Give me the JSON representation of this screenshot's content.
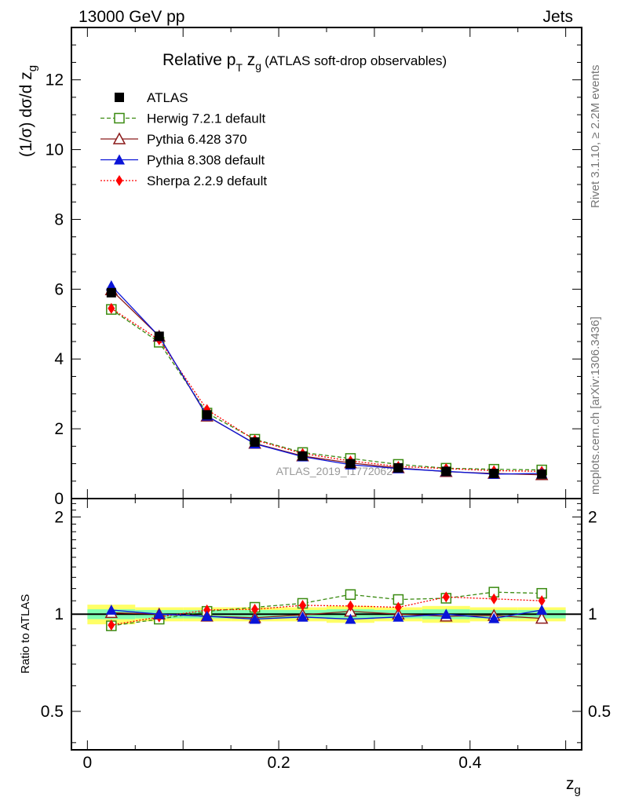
{
  "header": {
    "left": "13000 GeV pp",
    "right": "Jets"
  },
  "title": {
    "main": "Relative p",
    "sub_T": "T",
    "mid": " z",
    "sub_g": "g",
    "paren": "(ATLAS soft-drop observables)"
  },
  "side_text": {
    "rivet": "Rivet 3.1.10, ≥ 2.2M events",
    "mcplots": "mcplots.cern.ch [arXiv:1306.3436]"
  },
  "watermark": "ATLAS_2019_I1772062",
  "axes": {
    "ylabel_main": "(1/σ) dσ/d z",
    "ylabel_main_sub": "g",
    "ylabel_ratio": "Ratio to ATLAS",
    "xlabel": "z",
    "xlabel_sub": "g"
  },
  "colors": {
    "atlas": "#000000",
    "herwig": "#3a8a10",
    "pythia6": "#8b1a1a",
    "pythia8": "#0a14d8",
    "sherpa": "#ff0000",
    "band_inner": "#7fffb2",
    "band_outer": "#ffff66"
  },
  "chart_data": [
    {
      "type": "line",
      "panel": "main",
      "xlim": [
        -0.0167,
        0.5167
      ],
      "ylim": [
        0,
        13.5
      ],
      "x": [
        0.025,
        0.075,
        0.125,
        0.175,
        0.225,
        0.275,
        0.325,
        0.375,
        0.425,
        0.475
      ],
      "xticks": [
        0,
        0.2,
        0.4
      ],
      "xtick_labels": [
        "0",
        "0.2",
        "0.4"
      ],
      "yticks": [
        0,
        2,
        4,
        6,
        8,
        10,
        12
      ],
      "ytick_labels": [
        "0",
        "2",
        "4",
        "6",
        "8",
        "10",
        "12"
      ],
      "series": [
        {
          "name": "ATLAS",
          "key": "atlas",
          "values": [
            5.9,
            4.65,
            2.4,
            1.62,
            1.22,
            1.0,
            0.88,
            0.78,
            0.72,
            0.7
          ]
        },
        {
          "name": "Herwig 7.2.1 default",
          "key": "herwig",
          "values": [
            5.42,
            4.48,
            2.45,
            1.7,
            1.32,
            1.15,
            0.98,
            0.87,
            0.84,
            0.82
          ]
        },
        {
          "name": "Pythia 6.428 370",
          "key": "pythia6",
          "values": [
            5.98,
            4.65,
            2.36,
            1.58,
            1.22,
            1.02,
            0.88,
            0.77,
            0.72,
            0.68
          ]
        },
        {
          "name": "Pythia 8.308 default",
          "key": "pythia8",
          "values": [
            6.1,
            4.65,
            2.37,
            1.57,
            1.2,
            0.97,
            0.86,
            0.78,
            0.7,
            0.72
          ]
        },
        {
          "name": "Sherpa 2.2.9 default",
          "key": "sherpa",
          "values": [
            5.45,
            4.55,
            2.55,
            1.68,
            1.29,
            1.08,
            0.92,
            0.86,
            0.8,
            0.78
          ]
        }
      ],
      "legend": "top-left"
    },
    {
      "type": "line",
      "panel": "ratio",
      "xlim": [
        -0.0167,
        0.5167
      ],
      "ylim": [
        0.38,
        2.28
      ],
      "x": [
        0.025,
        0.075,
        0.125,
        0.175,
        0.225,
        0.275,
        0.325,
        0.375,
        0.425,
        0.475
      ],
      "yticks": [
        0.5,
        1,
        2
      ],
      "ytick_labels": [
        "0.5",
        "1",
        "2"
      ],
      "band_inner": [
        0.035,
        0.03,
        0.03,
        0.03,
        0.03,
        0.035,
        0.03,
        0.035,
        0.03,
        0.03
      ],
      "band_outer": [
        0.07,
        0.05,
        0.05,
        0.05,
        0.05,
        0.06,
        0.05,
        0.06,
        0.05,
        0.05
      ],
      "series": [
        {
          "name": "Herwig 7.2.1 default",
          "key": "herwig",
          "values": [
            0.92,
            0.965,
            1.02,
            1.05,
            1.08,
            1.15,
            1.11,
            1.12,
            1.17,
            1.16
          ]
        },
        {
          "name": "Pythia 6.428 370",
          "key": "pythia6",
          "values": [
            1.01,
            1.0,
            0.985,
            0.975,
            0.995,
            1.02,
            1.0,
            0.985,
            0.99,
            0.97
          ]
        },
        {
          "name": "Pythia 8.308 default",
          "key": "pythia8",
          "values": [
            1.03,
            1.0,
            0.985,
            0.965,
            0.98,
            0.965,
            0.98,
            1.0,
            0.97,
            1.03
          ]
        },
        {
          "name": "Sherpa 2.2.9 default",
          "key": "sherpa",
          "values": [
            0.925,
            0.98,
            1.03,
            1.035,
            1.065,
            1.06,
            1.05,
            1.13,
            1.115,
            1.1
          ]
        }
      ]
    }
  ]
}
